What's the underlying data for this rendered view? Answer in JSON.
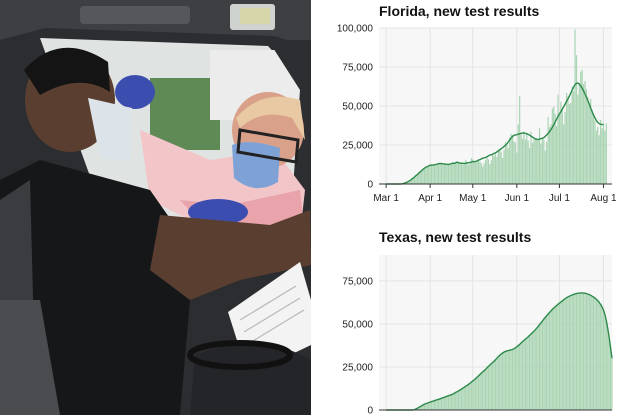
{
  "colors": {
    "bar": "#a9d4b2",
    "avg_line": "#2c8a4a",
    "grid": "#e4e4e4",
    "plot_bg": "#f7f7f7",
    "axis": "#333333"
  },
  "chart_data": [
    {
      "type": "bar",
      "title": "Florida, new test results",
      "xlabel": "",
      "ylabel": "",
      "ylim": [
        0,
        100000
      ],
      "yticks": [
        0,
        25000,
        50000,
        75000,
        100000
      ],
      "ytick_labels": [
        "0",
        "25,000",
        "50,000",
        "75,000",
        "100,000"
      ],
      "x_start": "2020-02-25",
      "x_end": "2020-08-07",
      "xticks": [
        "2020-03-01",
        "2020-04-01",
        "2020-05-01",
        "2020-06-01",
        "2020-07-01",
        "2020-08-01"
      ],
      "xtick_labels": [
        "Mar 1",
        "Apr 1",
        "May 1",
        "Jun 1",
        "Jul 1",
        "Aug 1"
      ],
      "grid": true,
      "bar_start": "2020-03-01",
      "series": [
        {
          "label": "daily",
          "values": [
            0,
            0,
            0,
            0,
            0,
            0,
            0,
            0,
            0,
            0,
            0,
            0,
            300,
            600,
            900,
            1300,
            1800,
            2400,
            3100,
            3800,
            4500,
            5300,
            6100,
            7000,
            7800,
            8600,
            9400,
            10100,
            10800,
            11200,
            11600,
            12000,
            12100,
            12200,
            12300,
            12500,
            12800,
            13000,
            13200,
            13100,
            13000,
            12800,
            12700,
            12600,
            12500,
            12800,
            13100,
            13400,
            13200,
            13600,
            14000,
            13700,
            13400,
            13300,
            12500,
            12900,
            15500,
            14000,
            12400,
            13900,
            16600,
            15700,
            15100,
            13500,
            14700,
            15600,
            14300,
            13300,
            11200,
            13200,
            15300,
            17300,
            15800,
            12700,
            15100,
            19600,
            18200,
            19800,
            17400,
            22200,
            22400,
            20700,
            16700,
            21900,
            26800,
            25100,
            23000,
            29800,
            32200,
            31400,
            27400,
            26600,
            20100,
            38100,
            56300,
            31700,
            29000,
            33600,
            28400,
            31900,
            27700,
            23000,
            33500,
            26400,
            28800,
            29400,
            28600,
            29200,
            35700,
            26100,
            29400,
            28400,
            21500,
            27000,
            42900,
            36400,
            38100,
            48300,
            49500,
            45000,
            37100,
            57300,
            43900,
            52700,
            48300,
            38200,
            46200,
            58400,
            56200,
            51200,
            52000,
            62400,
            59400,
            99000,
            82600,
            57200,
            64300,
            72000,
            73400,
            64000,
            66000,
            60800,
            55900,
            51800,
            54500,
            47600,
            44600,
            40700,
            34300,
            36600,
            31300,
            41100,
            35600,
            38800,
            34200,
            38900
          ]
        },
        {
          "label": "7-day average",
          "values": [
            0,
            0,
            0,
            0,
            0,
            0,
            0,
            0,
            0,
            0,
            0,
            0,
            300,
            600,
            900,
            1300,
            1800,
            2400,
            3100,
            3800,
            4500,
            5300,
            6100,
            7000,
            7800,
            8600,
            9400,
            10100,
            10800,
            11200,
            11600,
            12000,
            12100,
            12200,
            12300,
            12500,
            12800,
            13000,
            13200,
            13100,
            13000,
            12800,
            12700,
            12600,
            12500,
            12800,
            13100,
            13400,
            13200,
            13600,
            14000,
            13700,
            13400,
            13300,
            13300,
            13200,
            13300,
            13600,
            13600,
            13700,
            14100,
            14400,
            14200,
            14300,
            14800,
            15300,
            15600,
            16100,
            16500,
            16800,
            17000,
            17500,
            18000,
            18500,
            18700,
            19100,
            19600,
            20000,
            20600,
            21200,
            21900,
            22600,
            23300,
            24000,
            24900,
            25800,
            27000,
            28300,
            29500,
            30500,
            31200,
            31500,
            31600,
            32000,
            32200,
            32500,
            32600,
            32700,
            32500,
            32200,
            31800,
            31300,
            30700,
            30100,
            29500,
            29000,
            28700,
            28500,
            28700,
            29100,
            29300,
            29700,
            30500,
            31400,
            32400,
            33500,
            34800,
            36300,
            38000,
            39800,
            41600,
            43300,
            44900,
            46400,
            48000,
            49600,
            51200,
            52900,
            54600,
            56400,
            58300,
            60200,
            62100,
            63700,
            64600,
            64700,
            64100,
            62900,
            61300,
            59600,
            57700,
            55700,
            53500,
            51200,
            48700,
            46400,
            44200,
            42300,
            40700,
            39500,
            38700,
            38300,
            38200,
            38100
          ]
        }
      ]
    },
    {
      "type": "bar",
      "title": "Texas, new test results",
      "xlabel": "",
      "ylabel": "",
      "ylim": [
        0,
        90000
      ],
      "yticks": [
        0,
        25000,
        50000,
        75000
      ],
      "ytick_labels": [
        "0",
        "25,000",
        "50,000",
        "75,000"
      ],
      "x_start": "2020-02-25",
      "x_end": "2020-08-07",
      "grid": true,
      "bar_start": "2020-03-01",
      "series": [
        {
          "label": "daily",
          "values": [
            0,
            0,
            0,
            0,
            0,
            0,
            0,
            0,
            0,
            0,
            0,
            0,
            0,
            0,
            0,
            0,
            0,
            0,
            0,
            0,
            300,
            600,
            1000,
            1500,
            2000,
            2400,
            2900,
            3400,
            3700,
            4000,
            4300,
            4600,
            4900,
            5100,
            5400,
            5700,
            6000,
            6200,
            6500,
            6800,
            7100,
            7400,
            7700,
            8000,
            8300,
            8600,
            8900,
            9300,
            9700,
            10200,
            10600,
            11100,
            11600,
            12100,
            12700,
            13200,
            13800,
            14300,
            14900,
            15500,
            16200,
            16900,
            17500,
            18200,
            19000,
            19800,
            20600,
            21400,
            22100,
            22800,
            23600,
            24500,
            25300,
            26100,
            26900,
            27600,
            28400,
            29200,
            30100,
            31000,
            31800,
            32500,
            33100,
            33600,
            34000,
            34300,
            34500,
            34700,
            34900,
            35200,
            35600,
            36100,
            36700,
            37400,
            38100,
            38900,
            39700,
            40400,
            41100,
            41800,
            42500,
            43300,
            44100,
            44900,
            45700,
            46600,
            47500,
            48500,
            49600,
            50600,
            51700,
            52700,
            53700,
            54700,
            55700,
            56600,
            57500,
            58400,
            59200,
            60000,
            60700,
            61400,
            62000,
            62700,
            63300,
            64000,
            64600,
            65200,
            65700,
            66100,
            66500,
            66800,
            67100,
            67400,
            67600,
            67800,
            67900,
            68000,
            68000,
            67900,
            67800,
            67600,
            67300,
            67000,
            66600,
            66100,
            65600,
            65000,
            64300,
            63500,
            62500,
            61300,
            59800,
            58000,
            55500,
            52000,
            47500,
            42000,
            36000,
            30000
          ]
        },
        {
          "label": "7-day average",
          "values": [
            0,
            0,
            0,
            0,
            0,
            0,
            0,
            0,
            0,
            0,
            0,
            0,
            0,
            0,
            0,
            0,
            0,
            0,
            0,
            0,
            300,
            600,
            1000,
            1500,
            2000,
            2400,
            2900,
            3400,
            3700,
            4000,
            4300,
            4600,
            4900,
            5100,
            5400,
            5700,
            6000,
            6200,
            6500,
            6800,
            7100,
            7400,
            7700,
            8000,
            8300,
            8600,
            8900,
            9300,
            9700,
            10200,
            10600,
            11100,
            11600,
            12100,
            12700,
            13200,
            13800,
            14300,
            14900,
            15500,
            16200,
            16900,
            17500,
            18200,
            19000,
            19800,
            20600,
            21400,
            22100,
            22800,
            23600,
            24500,
            25300,
            26100,
            26900,
            27600,
            28400,
            29200,
            30100,
            31000,
            31800,
            32500,
            33100,
            33600,
            34000,
            34300,
            34500,
            34700,
            34900,
            35200,
            35600,
            36100,
            36700,
            37400,
            38100,
            38900,
            39700,
            40400,
            41100,
            41800,
            42500,
            43300,
            44100,
            44900,
            45700,
            46600,
            47500,
            48500,
            49600,
            50600,
            51700,
            52700,
            53700,
            54700,
            55700,
            56600,
            57500,
            58400,
            59200,
            60000,
            60700,
            61400,
            62000,
            62700,
            63300,
            64000,
            64600,
            65200,
            65700,
            66100,
            66500,
            66800,
            67100,
            67400,
            67600,
            67800,
            67900,
            68000,
            68000,
            67900,
            67800,
            67600,
            67300,
            67000,
            66600,
            66100,
            65600,
            65000,
            64300,
            63500,
            62500,
            61300,
            59800,
            58000,
            55500,
            52000,
            47500,
            42000,
            36000,
            30000
          ]
        }
      ]
    }
  ]
}
